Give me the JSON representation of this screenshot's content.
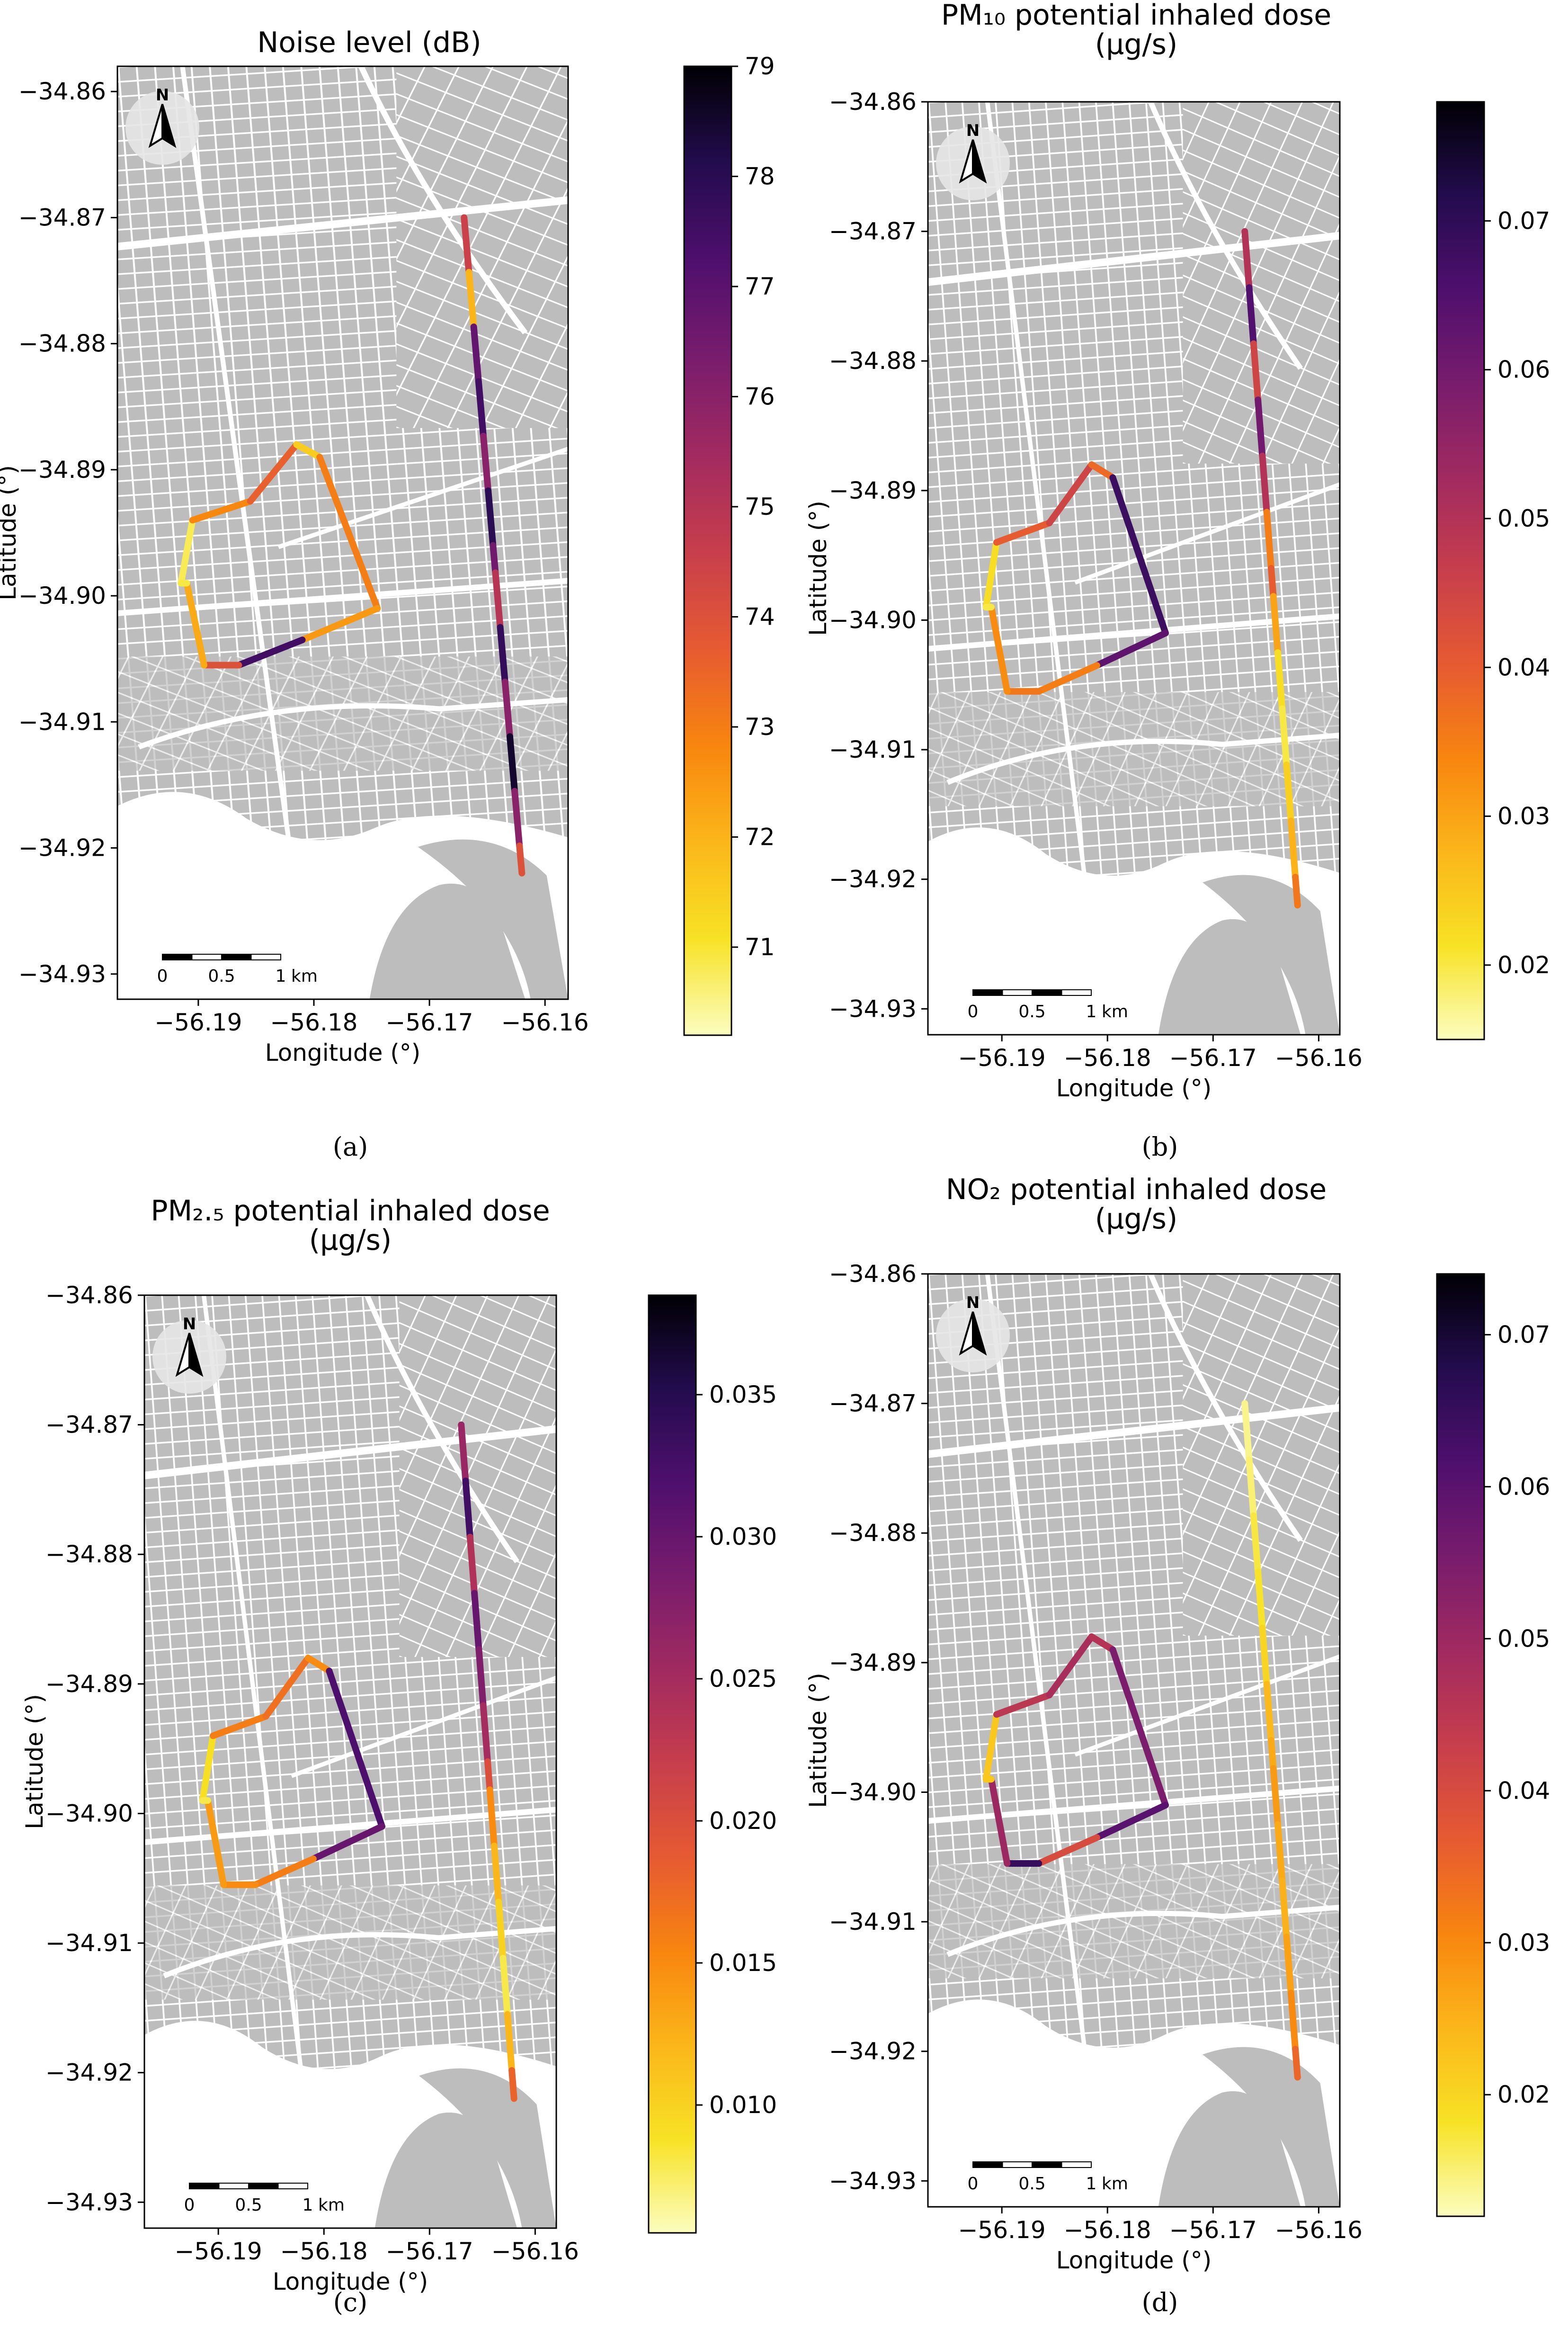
{
  "palette": [
    "#fcfdbf",
    "#f7e225",
    "#fbb61a",
    "#f8850f",
    "#e65a32",
    "#c73e4c",
    "#a12a60",
    "#781c6d",
    "#4e0f6d",
    "#230c4e",
    "#000004"
  ],
  "colors": {
    "map_background": "#bdbdbd",
    "street": "#ffffff",
    "axis": "#000000"
  },
  "chart_data": [
    {
      "type": "line",
      "panel": "a",
      "caption": "(a)",
      "title": "Noise level (dB)",
      "title_lines": [
        "Noise level (dB)"
      ],
      "xlabel": "Longitude (°)",
      "ylabel": "Latitude (°)",
      "xlim": [
        -56.197,
        -56.158
      ],
      "ylim": [
        -34.932,
        -34.858
      ],
      "xticks": [
        -56.19,
        -56.18,
        -56.17,
        -56.16
      ],
      "xtick_labels": [
        "−56.19",
        "−56.18",
        "−56.17",
        "−56.16"
      ],
      "yticks": [
        -34.93,
        -34.92,
        -34.91,
        -34.9,
        -34.89,
        -34.88,
        -34.87,
        -34.86
      ],
      "ytick_labels": [
        "−34.93",
        "−34.92",
        "−34.91",
        "−34.90",
        "−34.89",
        "−34.88",
        "−34.87",
        "−34.86"
      ],
      "colorbar": {
        "label": "dB",
        "range": [
          70.2,
          79.0
        ],
        "ticks": [
          71,
          72,
          73,
          74,
          75,
          76,
          77,
          78,
          79
        ],
        "tick_labels": [
          "71",
          "72",
          "73",
          "74",
          "75",
          "76",
          "77",
          "78",
          "79"
        ]
      },
      "compass_label": "N",
      "scale_bar": {
        "labels": [
          "0",
          "0.5",
          "1"
        ],
        "unit": "km"
      },
      "series": [
        {
          "name": "Loop route",
          "lon": [
            -56.1915,
            -56.1905,
            -56.1855,
            -56.1815,
            -56.1795,
            -56.1745,
            -56.181,
            -56.1865,
            -56.1895,
            -56.191,
            -56.1915
          ],
          "lat": [
            -34.899,
            -34.894,
            -34.8925,
            -34.888,
            -34.889,
            -34.901,
            -34.9035,
            -34.9055,
            -34.9055,
            -34.899,
            -34.899
          ],
          "values": [
            70.8,
            72.8,
            73.6,
            71.5,
            73.0,
            72.5,
            77.5,
            74.0,
            72.2,
            70.9
          ]
        },
        {
          "name": "Avenue route",
          "lon": [
            -56.167,
            -56.1645,
            -56.162
          ],
          "lat": [
            -34.87,
            -34.896,
            -34.922
          ],
          "values": [
            74.5,
            72.0,
            76.8,
            77.5,
            76.0,
            78.0,
            76.5,
            75.0,
            77.8,
            76.0,
            78.5,
            76.0,
            74.0
          ]
        }
      ]
    },
    {
      "type": "line",
      "panel": "b",
      "caption": "(b)",
      "title": "PM10 potential inhaled dose (μg/s)",
      "title_lines": [
        "PM₁₀ potential inhaled dose",
        "(μg/s)"
      ],
      "xlabel": "Longitude (°)",
      "ylabel": "Latitude (°)",
      "xlim": [
        -56.197,
        -56.158
      ],
      "ylim": [
        -34.932,
        -34.86
      ],
      "xticks": [
        -56.19,
        -56.18,
        -56.17,
        -56.16
      ],
      "xtick_labels": [
        "−56.19",
        "−56.18",
        "−56.17",
        "−56.16"
      ],
      "yticks": [
        -34.93,
        -34.92,
        -34.91,
        -34.9,
        -34.89,
        -34.88,
        -34.87,
        -34.86
      ],
      "ytick_labels": [
        "−34.93",
        "−34.92",
        "−34.91",
        "−34.90",
        "−34.89",
        "−34.88",
        "−34.87",
        "−34.86"
      ],
      "colorbar": {
        "label": "μg/s",
        "range": [
          0.015,
          0.078
        ],
        "ticks": [
          0.02,
          0.03,
          0.04,
          0.05,
          0.06,
          0.07
        ],
        "tick_labels": [
          "0.02",
          "0.03",
          "0.04",
          "0.05",
          "0.06",
          "0.07"
        ]
      },
      "compass_label": "N",
      "scale_bar": {
        "labels": [
          "0",
          "0.5",
          "1"
        ],
        "unit": "km"
      },
      "series": [
        {
          "name": "Loop route",
          "lon": [
            -56.1915,
            -56.1905,
            -56.1855,
            -56.1815,
            -56.1795,
            -56.1745,
            -56.181,
            -56.1865,
            -56.1895,
            -56.191,
            -56.1915
          ],
          "lat": [
            -34.899,
            -34.894,
            -34.8925,
            -34.888,
            -34.889,
            -34.901,
            -34.9035,
            -34.9055,
            -34.9055,
            -34.899,
            -34.899
          ],
          "values": [
            0.022,
            0.04,
            0.045,
            0.038,
            0.068,
            0.063,
            0.035,
            0.036,
            0.033,
            0.02
          ]
        },
        {
          "name": "Avenue route",
          "lon": [
            -56.167,
            -56.1645,
            -56.162
          ],
          "lat": [
            -34.87,
            -34.896,
            -34.922
          ],
          "values": [
            0.05,
            0.065,
            0.045,
            0.06,
            0.05,
            0.035,
            0.04,
            0.03,
            0.022,
            0.02,
            0.024,
            0.028,
            0.036
          ]
        }
      ]
    },
    {
      "type": "line",
      "panel": "c",
      "caption": "(c)",
      "title": "PM2.5 potential inhaled dose (μg/s)",
      "title_lines": [
        "PM₂.₅ potential inhaled dose",
        "(μg/s)"
      ],
      "xlabel": "Longitude (°)",
      "ylabel": "Latitude (°)",
      "xlim": [
        -56.197,
        -56.158
      ],
      "ylim": [
        -34.932,
        -34.86
      ],
      "xticks": [
        -56.19,
        -56.18,
        -56.17,
        -56.16
      ],
      "xtick_labels": [
        "−56.19",
        "−56.18",
        "−56.17",
        "−56.16"
      ],
      "yticks": [
        -34.93,
        -34.92,
        -34.91,
        -34.9,
        -34.89,
        -34.88,
        -34.87,
        -34.86
      ],
      "ytick_labels": [
        "−34.93",
        "−34.92",
        "−34.91",
        "−34.90",
        "−34.89",
        "−34.88",
        "−34.87",
        "−34.86"
      ],
      "colorbar": {
        "label": "μg/s",
        "range": [
          0.0055,
          0.0385
        ],
        "ticks": [
          0.01,
          0.015,
          0.02,
          0.025,
          0.03,
          0.035
        ],
        "tick_labels": [
          "0.010",
          "0.015",
          "0.020",
          "0.025",
          "0.030",
          "0.035"
        ]
      },
      "compass_label": "N",
      "scale_bar": {
        "labels": [
          "0",
          "0.5",
          "1"
        ],
        "unit": "km"
      },
      "series": [
        {
          "name": "Loop route",
          "lon": [
            -56.1915,
            -56.1905,
            -56.1855,
            -56.1815,
            -56.1795,
            -56.1745,
            -56.181,
            -56.1865,
            -56.1895,
            -56.191,
            -56.1915
          ],
          "lat": [
            -34.899,
            -34.894,
            -34.8925,
            -34.888,
            -34.889,
            -34.901,
            -34.9035,
            -34.9055,
            -34.9055,
            -34.899,
            -34.899
          ],
          "values": [
            0.009,
            0.016,
            0.017,
            0.015,
            0.032,
            0.03,
            0.016,
            0.015,
            0.014,
            0.008
          ]
        },
        {
          "name": "Avenue route",
          "lon": [
            -56.167,
            -56.1645,
            -56.162
          ],
          "lat": [
            -34.87,
            -34.896,
            -34.922
          ],
          "values": [
            0.026,
            0.033,
            0.024,
            0.03,
            0.028,
            0.025,
            0.02,
            0.015,
            0.012,
            0.01,
            0.008,
            0.012,
            0.018
          ]
        }
      ]
    },
    {
      "type": "line",
      "panel": "d",
      "caption": "(d)",
      "title": "NO2 potential inhaled dose (μg/s)",
      "title_lines": [
        "NO₂ potential inhaled dose",
        "(μg/s)"
      ],
      "xlabel": "Longitude (°)",
      "ylabel": "Latitude (°)",
      "xlim": [
        -56.197,
        -56.158
      ],
      "ylim": [
        -34.932,
        -34.86
      ],
      "xticks": [
        -56.19,
        -56.18,
        -56.17,
        -56.16
      ],
      "xtick_labels": [
        "−56.19",
        "−56.18",
        "−56.17",
        "−56.16"
      ],
      "yticks": [
        -34.93,
        -34.92,
        -34.91,
        -34.9,
        -34.89,
        -34.88,
        -34.87,
        -34.86
      ],
      "ytick_labels": [
        "−34.93",
        "−34.92",
        "−34.91",
        "−34.90",
        "−34.89",
        "−34.88",
        "−34.87",
        "−34.86"
      ],
      "colorbar": {
        "label": "μg/s",
        "range": [
          0.012,
          0.074
        ],
        "ticks": [
          0.02,
          0.03,
          0.04,
          0.05,
          0.06,
          0.07
        ],
        "tick_labels": [
          "0.02",
          "0.03",
          "0.04",
          "0.05",
          "0.06",
          "0.07"
        ]
      },
      "compass_label": "N",
      "scale_bar": {
        "labels": [
          "0",
          "0.5",
          "1"
        ],
        "unit": "km"
      },
      "series": [
        {
          "name": "Loop route",
          "lon": [
            -56.1915,
            -56.1905,
            -56.1855,
            -56.1815,
            -56.1795,
            -56.1745,
            -56.181,
            -56.1865,
            -56.1895,
            -56.191,
            -56.1915
          ],
          "lat": [
            -34.899,
            -34.894,
            -34.8925,
            -34.888,
            -34.889,
            -34.901,
            -34.9035,
            -34.9055,
            -34.9055,
            -34.899,
            -34.899
          ],
          "values": [
            0.022,
            0.045,
            0.048,
            0.046,
            0.055,
            0.06,
            0.04,
            0.065,
            0.05,
            0.022
          ]
        },
        {
          "name": "Avenue route",
          "lon": [
            -56.167,
            -56.1645,
            -56.162
          ],
          "lat": [
            -34.87,
            -34.896,
            -34.922
          ],
          "values": [
            0.014,
            0.015,
            0.017,
            0.018,
            0.02,
            0.024,
            0.026,
            0.028,
            0.026,
            0.025,
            0.027,
            0.03,
            0.035
          ]
        }
      ]
    }
  ]
}
